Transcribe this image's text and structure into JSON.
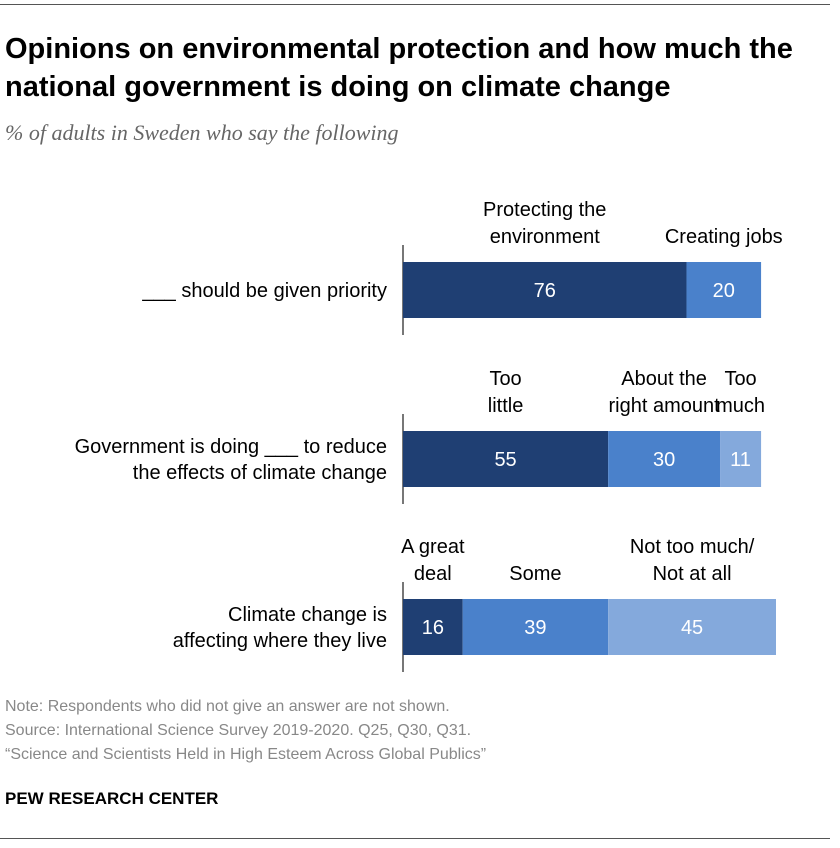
{
  "title": "Opinions on environmental protection and how much the national government is doing on climate change",
  "subtitle": "% of adults in Sweden who say the following",
  "chart_data": {
    "type": "bar",
    "orientation": "horizontal",
    "stacked": true,
    "rows": [
      {
        "label": [
          "___ should be given priority"
        ],
        "segments": [
          {
            "name": [
              "Protecting the",
              "environment"
            ],
            "value": 76,
            "color": "#1f3f73"
          },
          {
            "name": [
              "Creating jobs"
            ],
            "value": 20,
            "color": "#4a81cb"
          }
        ]
      },
      {
        "label": [
          "Government is doing ___ to reduce",
          "the effects of climate change"
        ],
        "segments": [
          {
            "name": [
              "Too",
              "little"
            ],
            "value": 55,
            "color": "#1f3f73"
          },
          {
            "name": [
              "About the",
              "right amount"
            ],
            "value": 30,
            "color": "#4a81cb"
          },
          {
            "name": [
              "Too",
              "much"
            ],
            "value": 11,
            "color": "#84a9dc"
          }
        ]
      },
      {
        "label": [
          "Climate change is",
          "affecting where they live"
        ],
        "segments": [
          {
            "name": [
              "A great",
              "deal"
            ],
            "value": 16,
            "color": "#1f3f73"
          },
          {
            "name": [
              "Some"
            ],
            "value": 39,
            "color": "#4a81cb"
          },
          {
            "name": [
              "Not too much/",
              "Not at all"
            ],
            "value": 45,
            "color": "#84a9dc"
          }
        ]
      }
    ]
  },
  "notes": [
    "Note: Respondents who did not give an answer are not shown.",
    "Source: International Science Survey 2019-2020. Q25, Q30, Q31.",
    "“Science and Scientists Held in High Esteem Across Global Publics”"
  ],
  "brand": "PEW RESEARCH CENTER"
}
